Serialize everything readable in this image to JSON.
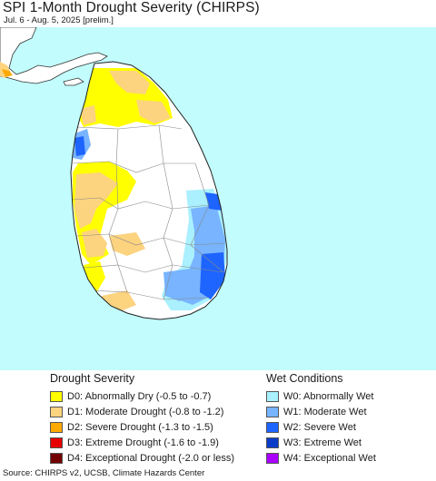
{
  "title": "SPI 1-Month Drought Severity (CHIRPS)",
  "subtitle": "Jul. 6 - Aug. 5, 2025 [prelim.]",
  "colors": {
    "ocean": "#c2fcfc",
    "land": "#ffffff",
    "neighbor_land": "#ffffff",
    "border": "#333333"
  },
  "legend": {
    "drought_title": "Drought Severity",
    "wet_title": "Wet Conditions",
    "drought_items": [
      {
        "code": "D0",
        "label": "D0: Abnormally Dry (-0.5 to -0.7)",
        "color": "#ffff00"
      },
      {
        "code": "D1",
        "label": "D1: Moderate Drought (-0.8 to -1.2)",
        "color": "#fcd37f"
      },
      {
        "code": "D2",
        "label": "D2: Severe Drought (-1.3 to -1.5)",
        "color": "#ffaa00"
      },
      {
        "code": "D3",
        "label": "D3: Extreme Drought (-1.6 to -1.9)",
        "color": "#e60000"
      },
      {
        "code": "D4",
        "label": "D4: Exceptional Drought (-2.0 or less)",
        "color": "#730000"
      }
    ],
    "wet_items": [
      {
        "code": "W0",
        "label": "W0: Abnormally Wet",
        "color": "#aaf0ff"
      },
      {
        "code": "W1",
        "label": "W1: Moderate Wet",
        "color": "#78b4ff"
      },
      {
        "code": "W2",
        "label": "W2: Severe Wet",
        "color": "#1e64ff"
      },
      {
        "code": "W3",
        "label": "W3: Extreme Wet",
        "color": "#0a3cc8"
      },
      {
        "code": "W4",
        "label": "W4: Exceptional Wet",
        "color": "#aa00ff"
      }
    ]
  },
  "source": "Source: CHIRPS v2, UCSB, Climate Hazards Center"
}
